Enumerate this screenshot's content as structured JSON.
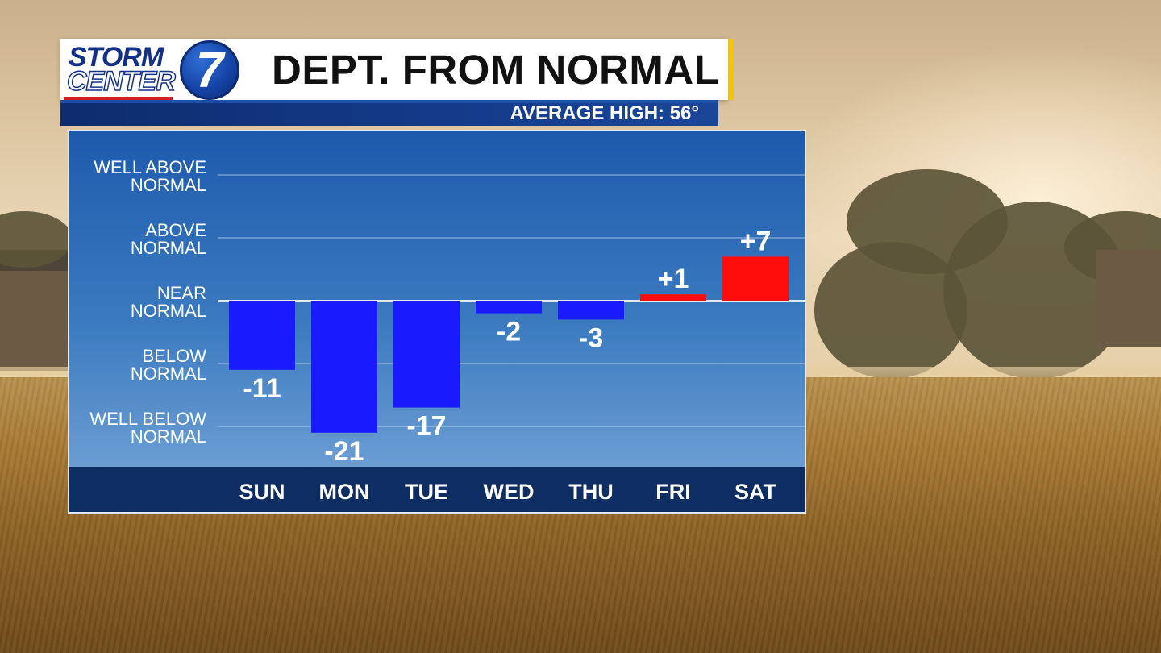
{
  "header": {
    "title": "DEPT. FROM NORMAL",
    "subtitle": "AVERAGE HIGH: 56°",
    "logo_top": "STORM",
    "logo_bottom": "CENTER",
    "logo_number": "7"
  },
  "colors": {
    "below_bar": "#1a1aff",
    "above_bar": "#ff0d0d",
    "header_accent": "#f2c21b",
    "brand_blue": "#14318a"
  },
  "chart_data": {
    "type": "bar",
    "title": "DEPT. FROM NORMAL",
    "subtitle": "AVERAGE HIGH: 56°",
    "categories": [
      "SUN",
      "MON",
      "TUE",
      "WED",
      "THU",
      "FRI",
      "SAT"
    ],
    "values": [
      -11,
      -21,
      -17,
      -2,
      -3,
      1,
      7
    ],
    "value_labels": [
      "-11",
      "-21",
      "-17",
      "-2",
      "-3",
      "+1",
      "+7"
    ],
    "y_categories": [
      {
        "line1": "WELL ABOVE",
        "line2": "NORMAL",
        "value": 20
      },
      {
        "line1": "ABOVE",
        "line2": "NORMAL",
        "value": 10
      },
      {
        "line1": "NEAR",
        "line2": "NORMAL",
        "value": 0
      },
      {
        "line1": "BELOW",
        "line2": "NORMAL",
        "value": -10
      },
      {
        "line1": "WELL BELOW",
        "line2": "NORMAL",
        "value": -20
      }
    ],
    "ylim": [
      -26,
      27
    ],
    "grid": true,
    "legend": "none"
  }
}
